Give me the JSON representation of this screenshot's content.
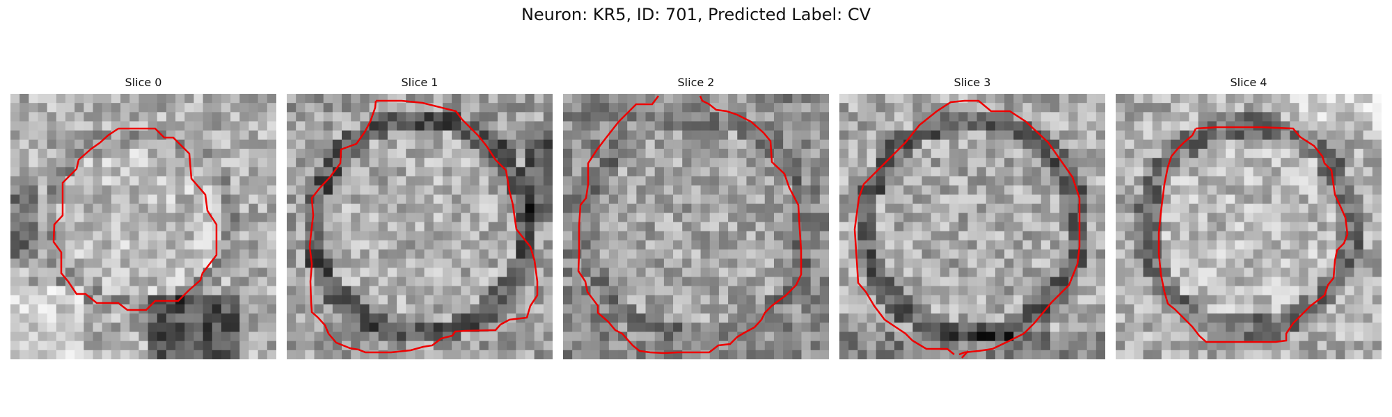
{
  "figure": {
    "title": "Neuron: KR5, ID: 701, Predicted Label: CV"
  },
  "slices": [
    {
      "label": "Slice 0",
      "contour_color": "#ee0000"
    },
    {
      "label": "Slice 1",
      "contour_color": "#ee0000"
    },
    {
      "label": "Slice 2",
      "contour_color": "#ee0000"
    },
    {
      "label": "Slice 3",
      "contour_color": "#ee0000"
    },
    {
      "label": "Slice 4",
      "contour_color": "#ee0000"
    }
  ]
}
